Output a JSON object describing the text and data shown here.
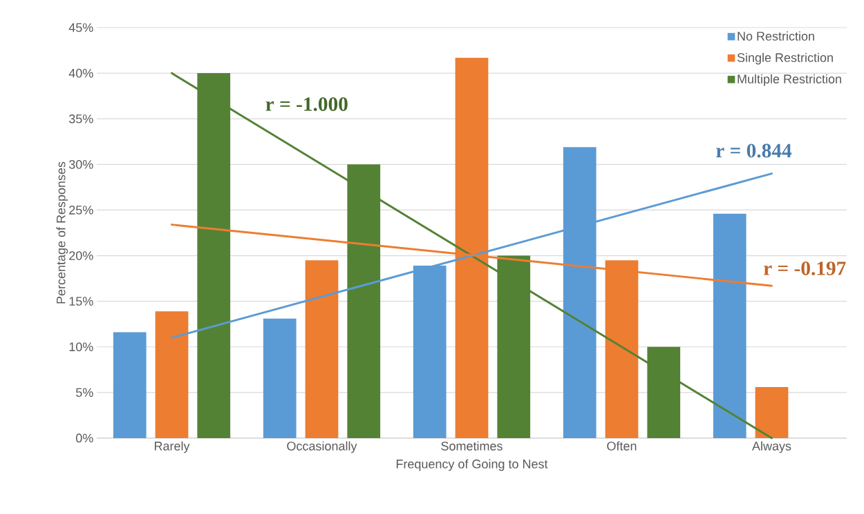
{
  "chart_data": {
    "type": "bar",
    "xlabel": "Frequency of Going to Nest",
    "ylabel": "Percentage of Responses",
    "categories": [
      "Rarely",
      "Occasionally",
      "Sometimes",
      "Often",
      "Always"
    ],
    "series": [
      {
        "name": "No Restriction",
        "color": "#5b9bd5",
        "values": [
          11.6,
          13.1,
          18.9,
          31.9,
          24.6
        ]
      },
      {
        "name": "Single Restriction",
        "color": "#ed7d31",
        "values": [
          13.9,
          19.5,
          41.7,
          19.5,
          5.6
        ]
      },
      {
        "name": "Multiple Restriction",
        "color": "#548235",
        "values": [
          40,
          30,
          20,
          10,
          0
        ]
      },
      {
        "type": "line",
        "color": "#548235",
        "x": [
          "Rarely",
          "Always"
        ],
        "values": [
          40,
          0
        ]
      },
      {
        "type": "line",
        "color": "#5b9bd5",
        "x": [
          "Rarely",
          "Always"
        ],
        "values": [
          11.0,
          29.0
        ]
      },
      {
        "type": "line",
        "color": "#ed7d31",
        "x": [
          "Rarely",
          "Always"
        ],
        "values": [
          23.4,
          16.7
        ]
      }
    ],
    "annotations": [
      "r = -1.000",
      "r = 0.844",
      "r = -0.197"
    ],
    "ylim": [
      0,
      45
    ],
    "yticks": [
      {
        "value": 0,
        "label": "0%"
      },
      {
        "value": 5,
        "label": "5%"
      },
      {
        "value": 10,
        "label": "10%"
      },
      {
        "value": 15,
        "label": "15%"
      },
      {
        "value": 20,
        "label": "20%"
      },
      {
        "value": 25,
        "label": "25%"
      },
      {
        "value": 30,
        "label": "30%"
      },
      {
        "value": 35,
        "label": "35%"
      },
      {
        "value": 40,
        "label": "40%"
      },
      {
        "value": 45,
        "label": "45%"
      }
    ],
    "grid": "y",
    "legend": "top right"
  }
}
